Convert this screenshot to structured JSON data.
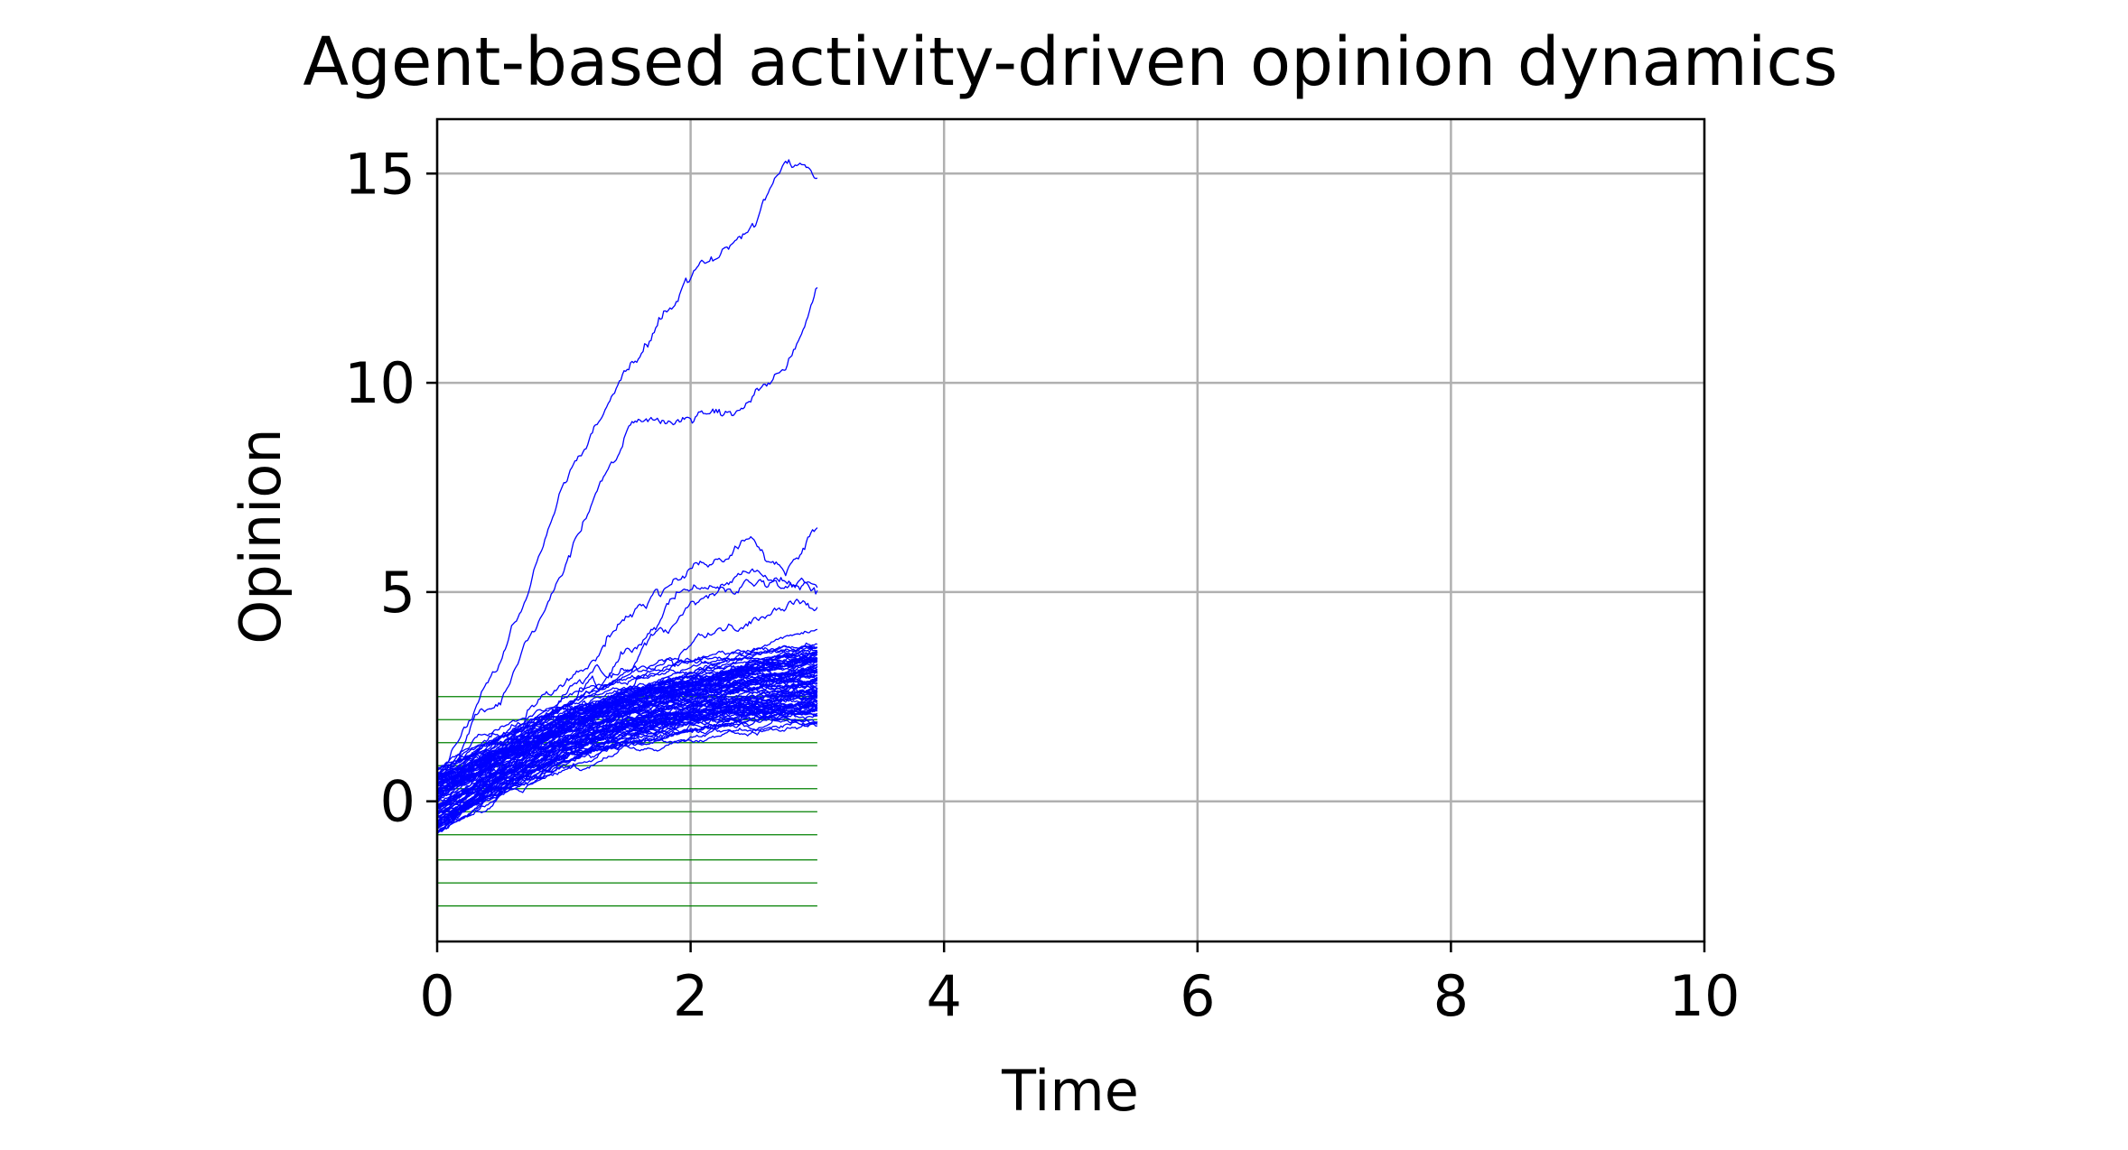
{
  "chart_data": {
    "type": "line",
    "title": "Agent-based activity-driven opinion dynamics",
    "xlabel": "Time",
    "ylabel": "Opinion",
    "xlim": [
      0,
      10
    ],
    "ylim": [
      -3.35,
      16.3
    ],
    "xticks": [
      0,
      2,
      4,
      6,
      8,
      10
    ],
    "yticks": [
      0,
      5,
      10,
      15
    ],
    "xtick_labels": [
      "0",
      "2",
      "4",
      "6",
      "8",
      "10"
    ],
    "ytick_labels": [
      "0",
      "5",
      "10",
      "15"
    ],
    "grid": true,
    "legend": false,
    "colors": {
      "trajectories": "#0000ff",
      "reference_levels": "#008000",
      "grid": "#b0b0b0",
      "axes": "#000000"
    },
    "time_range": [
      0,
      3
    ],
    "trajectory_count": 100,
    "trajectory_samples": [
      {
        "x": [
          0,
          0.5,
          1.0,
          1.5,
          2.0,
          2.5,
          2.75,
          3.0
        ],
        "y": [
          0.6,
          3.5,
          7.5,
          10.6,
          12.5,
          14.0,
          15.4,
          14.8
        ]
      },
      {
        "x": [
          0,
          0.5,
          1.0,
          1.5,
          2.0,
          2.5,
          2.75,
          3.0
        ],
        "y": [
          0.4,
          2.5,
          5.5,
          8.8,
          9.3,
          10.0,
          10.1,
          12.2
        ]
      },
      {
        "x": [
          0,
          0.5,
          1.0,
          1.5,
          2.0,
          2.5,
          2.75,
          3.0
        ],
        "y": [
          0.5,
          1.5,
          3.0,
          4.6,
          5.6,
          6.0,
          5.5,
          6.3
        ]
      },
      {
        "x": [
          0,
          0.5,
          1.0,
          1.5,
          2.0,
          2.5,
          2.75,
          3.0
        ],
        "y": [
          0.2,
          1.2,
          2.6,
          4.0,
          5.2,
          5.4,
          5.1,
          5.0
        ]
      },
      {
        "x": [
          0,
          0.5,
          1.0,
          1.5,
          2.0,
          2.5,
          2.75,
          3.0
        ],
        "y": [
          0.3,
          1.0,
          2.4,
          3.5,
          4.8,
          5.0,
          4.7,
          4.8
        ]
      },
      {
        "x": [
          0,
          0.5,
          1.0,
          1.5,
          2.0,
          2.5,
          2.75,
          3.0
        ],
        "y": [
          0.1,
          0.9,
          2.0,
          3.0,
          3.8,
          4.2,
          4.3,
          4.5
        ]
      }
    ],
    "bulk_band": {
      "x": [
        0,
        0.5,
        1.0,
        1.5,
        2.0,
        2.5,
        3.0
      ],
      "lower": [
        -0.9,
        0.1,
        0.8,
        1.3,
        1.6,
        1.7,
        1.8
      ],
      "upper": [
        0.9,
        1.6,
        2.4,
        2.9,
        3.2,
        3.6,
        3.9
      ]
    },
    "reference_levels": {
      "x_range": [
        0,
        3
      ],
      "y": [
        -2.5,
        -1.95,
        -1.4,
        -0.8,
        -0.25,
        0.3,
        0.85,
        1.4,
        1.95,
        2.5
      ]
    }
  }
}
